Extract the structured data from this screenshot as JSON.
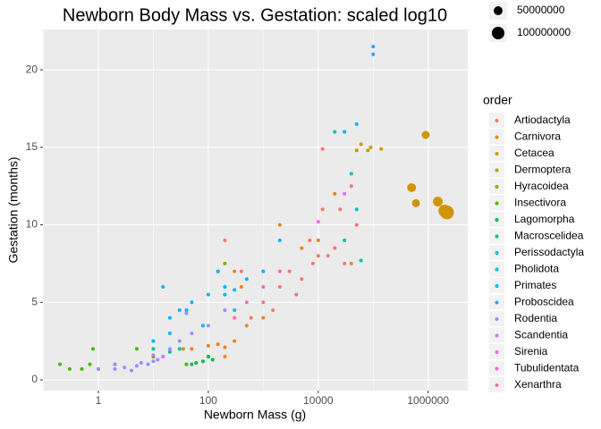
{
  "chart_data": {
    "type": "scatter",
    "title": "Newborn Body Mass vs. Gestation: scaled log10",
    "x_label": "Newborn Mass (g)",
    "y_label": "Gestation (months)",
    "x_scale": "log10",
    "xlim": [
      0.098,
      5250000
    ],
    "xticks": [
      1,
      100,
      10000,
      1000000
    ],
    "ylim": [
      -0.69,
      22.6
    ],
    "yticks": [
      0,
      5,
      10,
      15,
      20
    ],
    "grid": true,
    "legend_title": "order",
    "legend_position": "right",
    "size_legend": [
      50000000,
      100000000
    ],
    "series": [
      {
        "name": "Artiodactyla",
        "color": "#F8766D",
        "x": [
          1000,
          2000,
          3000,
          5000,
          8000,
          10000,
          20000,
          30000,
          50000,
          15000,
          600,
          1500,
          4000,
          7000,
          12000,
          25000,
          40000,
          12000,
          200,
          400,
          30000
        ],
        "values": [
          5,
          6,
          7,
          6.5,
          7.5,
          8,
          8.5,
          9,
          10,
          8,
          4,
          4.5,
          5.5,
          9,
          11,
          11,
          12.5,
          14.9,
          9,
          7,
          7.5
        ]
      },
      {
        "name": "Carnivora",
        "color": "#E7851E",
        "x": [
          50,
          100,
          200,
          300,
          500,
          1000,
          150,
          300,
          400,
          2000,
          5000,
          10000,
          40000,
          60000,
          20000,
          200
        ],
        "values": [
          2,
          2.2,
          2.1,
          2.5,
          3.5,
          4,
          2.3,
          7,
          6,
          10,
          8.5,
          9,
          7.5,
          15.2,
          12,
          1.5
        ]
      },
      {
        "name": "Cetacea",
        "color": "#D09400",
        "x": [
          50000,
          80000,
          140000,
          90000,
          900000,
          500000,
          600000,
          1500000,
          2000000,
          2200000
        ],
        "values": [
          14.8,
          14.8,
          14.9,
          15,
          15.8,
          12.4,
          11.4,
          11.5,
          10.9,
          10.8
        ],
        "sizes": [
          500000,
          1000000,
          2000000,
          3000000,
          40000000,
          50000000,
          40000000,
          60000000,
          100000000,
          120000000
        ]
      },
      {
        "name": "Dermoptera",
        "color": "#B2A100",
        "x": [
          35
        ],
        "values": [
          2
        ]
      },
      {
        "name": "Hyracoidea",
        "color": "#89AC00",
        "x": [
          200,
          150
        ],
        "values": [
          7.5,
          7
        ]
      },
      {
        "name": "Insectivora",
        "color": "#45B500",
        "x": [
          0.2,
          0.3,
          0.5,
          0.7,
          1,
          2,
          5,
          10,
          40,
          100,
          0.8
        ],
        "values": [
          1,
          0.7,
          0.7,
          1,
          0.7,
          1,
          2,
          1.5,
          1,
          1.5,
          2
        ]
      },
      {
        "name": "Lagomorpha",
        "color": "#00BC51",
        "x": [
          50,
          100,
          120,
          80,
          60
        ],
        "values": [
          1,
          1.5,
          1.3,
          1.2,
          1.1
        ]
      },
      {
        "name": "Macroscelidea",
        "color": "#00C08E",
        "x": [
          10,
          20,
          30
        ],
        "values": [
          2,
          1.8,
          2
        ]
      },
      {
        "name": "Perissodactyla",
        "color": "#00C0B8",
        "x": [
          30000,
          50000,
          40000,
          60000,
          20000
        ],
        "values": [
          9,
          11,
          13.3,
          7.7,
          16
        ]
      },
      {
        "name": "Pholidota",
        "color": "#00BCD9",
        "x": [
          300,
          200
        ],
        "values": [
          4.5,
          5.5
        ]
      },
      {
        "name": "Primates",
        "color": "#00B3F1",
        "x": [
          10,
          20,
          30,
          50,
          100,
          200,
          300,
          500,
          1000,
          2000,
          30000,
          50000,
          20,
          80,
          15,
          40,
          150
        ],
        "values": [
          2.5,
          3,
          4.5,
          5,
          5.5,
          6,
          5.8,
          6.5,
          7,
          9,
          16,
          16.5,
          4,
          3.5,
          6,
          4.5,
          7
        ]
      },
      {
        "name": "Proboscidea",
        "color": "#29A3FF",
        "x": [
          100000,
          100000
        ],
        "values": [
          21.5,
          21
        ]
      },
      {
        "name": "Rodentia",
        "color": "#9C8DFF",
        "x": [
          1,
          2,
          3,
          5,
          8,
          10,
          15,
          20,
          30,
          50,
          100,
          2,
          4,
          6,
          40,
          200,
          12
        ],
        "values": [
          0.7,
          0.7,
          0.8,
          0.9,
          1,
          1.2,
          1.5,
          2,
          2.5,
          3,
          3.5,
          1,
          0.6,
          1.1,
          4.3,
          4.5,
          1.3
        ]
      },
      {
        "name": "Scandentia",
        "color": "#D277FF",
        "x": [
          15,
          10
        ],
        "values": [
          1.5,
          1.6
        ]
      },
      {
        "name": "Sirenia",
        "color": "#F166E8",
        "x": [
          30000,
          10000
        ],
        "values": [
          12,
          10.2
        ]
      },
      {
        "name": "Tubulidentata",
        "color": "#FF61C7",
        "x": [
          2000
        ],
        "values": [
          7
        ]
      },
      {
        "name": "Xenarthra",
        "color": "#FF6C9B",
        "x": [
          300,
          500,
          1000
        ],
        "values": [
          4,
          5,
          6
        ]
      }
    ]
  }
}
